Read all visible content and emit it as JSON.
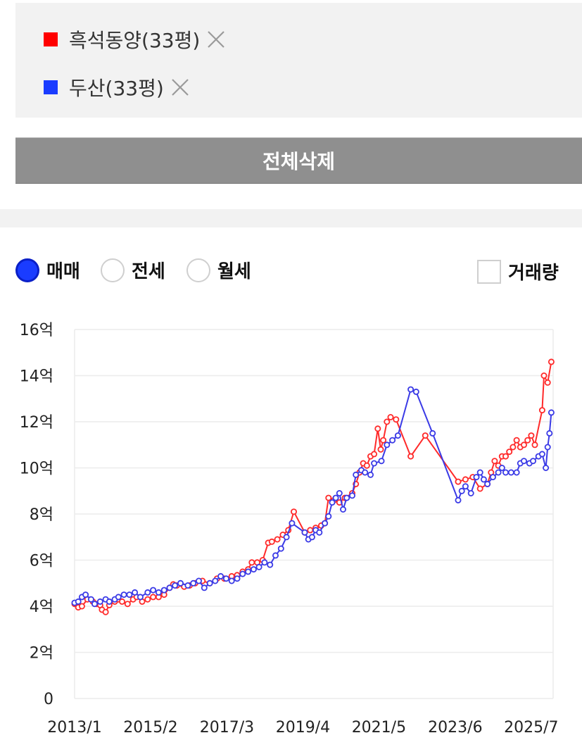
{
  "legend": {
    "items": [
      {
        "label": "흑석동양(33평)",
        "color": "#ff0000"
      },
      {
        "label": "두산(33평)",
        "color": "#1a3cff"
      }
    ]
  },
  "actions": {
    "delete_all_label": "전체삭제"
  },
  "trade_types": {
    "options": [
      {
        "label": "매매",
        "checked": true
      },
      {
        "label": "전세",
        "checked": false
      },
      {
        "label": "월세",
        "checked": false
      }
    ],
    "volume_label": "거래량",
    "volume_checked": false
  },
  "chart_data": {
    "type": "line",
    "y_unit": "억",
    "ylim": [
      0,
      16
    ],
    "y_ticks": [
      0,
      2,
      4,
      6,
      8,
      10,
      12,
      14,
      16
    ],
    "y_tick_labels": [
      "0",
      "2억",
      "4억",
      "6억",
      "8억",
      "10억",
      "12억",
      "14억",
      "16억"
    ],
    "x_ticks": [
      2013.0,
      2015.08,
      2017.17,
      2019.25,
      2021.33,
      2023.42,
      2025.5
    ],
    "x_tick_labels": [
      "2013/1",
      "2015/2",
      "2017/3",
      "2019/4",
      "2021/5",
      "2023/6",
      "2025/7"
    ],
    "xlim": [
      2013.0,
      2026.1
    ],
    "grid": true,
    "series": [
      {
        "name": "흑석동양(33평)",
        "color": "#ff2a2a",
        "points": [
          [
            2013.0,
            4.1
          ],
          [
            2013.1,
            3.95
          ],
          [
            2013.2,
            4.0
          ],
          [
            2013.35,
            4.3
          ],
          [
            2013.5,
            4.2
          ],
          [
            2013.6,
            4.1
          ],
          [
            2013.7,
            4.05
          ],
          [
            2013.75,
            3.85
          ],
          [
            2013.85,
            3.75
          ],
          [
            2013.95,
            4.05
          ],
          [
            2014.1,
            4.2
          ],
          [
            2014.2,
            4.3
          ],
          [
            2014.3,
            4.2
          ],
          [
            2014.45,
            4.1
          ],
          [
            2014.6,
            4.3
          ],
          [
            2014.7,
            4.4
          ],
          [
            2014.85,
            4.2
          ],
          [
            2015.0,
            4.3
          ],
          [
            2015.15,
            4.4
          ],
          [
            2015.3,
            4.4
          ],
          [
            2015.45,
            4.5
          ],
          [
            2015.6,
            4.8
          ],
          [
            2015.7,
            4.95
          ],
          [
            2015.8,
            4.9
          ],
          [
            2016.0,
            4.85
          ],
          [
            2016.15,
            4.9
          ],
          [
            2016.3,
            5.0
          ],
          [
            2016.5,
            5.1
          ],
          [
            2016.7,
            5.0
          ],
          [
            2016.9,
            5.2
          ],
          [
            2017.1,
            5.2
          ],
          [
            2017.3,
            5.3
          ],
          [
            2017.45,
            5.35
          ],
          [
            2017.6,
            5.5
          ],
          [
            2017.75,
            5.6
          ],
          [
            2017.85,
            5.9
          ],
          [
            2018.0,
            5.9
          ],
          [
            2018.15,
            6.0
          ],
          [
            2018.3,
            6.75
          ],
          [
            2018.4,
            6.8
          ],
          [
            2018.55,
            6.9
          ],
          [
            2018.7,
            7.1
          ],
          [
            2018.85,
            7.3
          ],
          [
            2019.0,
            8.1
          ],
          [
            2019.3,
            7.2
          ],
          [
            2019.45,
            7.3
          ],
          [
            2019.6,
            7.4
          ],
          [
            2019.75,
            7.5
          ],
          [
            2019.85,
            7.6
          ],
          [
            2019.95,
            8.7
          ],
          [
            2020.1,
            8.6
          ],
          [
            2020.25,
            8.5
          ],
          [
            2020.4,
            8.7
          ],
          [
            2020.6,
            8.9
          ],
          [
            2020.7,
            9.3
          ],
          [
            2020.8,
            9.8
          ],
          [
            2020.9,
            10.2
          ],
          [
            2021.0,
            10.1
          ],
          [
            2021.1,
            10.5
          ],
          [
            2021.2,
            10.6
          ],
          [
            2021.3,
            11.7
          ],
          [
            2021.38,
            10.8
          ],
          [
            2021.45,
            11.2
          ],
          [
            2021.55,
            12.0
          ],
          [
            2021.65,
            12.2
          ],
          [
            2021.8,
            12.1
          ],
          [
            2022.2,
            10.5
          ],
          [
            2022.6,
            11.4
          ],
          [
            2023.5,
            9.4
          ],
          [
            2023.7,
            9.5
          ],
          [
            2023.9,
            9.6
          ],
          [
            2024.1,
            9.1
          ],
          [
            2024.3,
            9.3
          ],
          [
            2024.4,
            9.8
          ],
          [
            2024.5,
            10.3
          ],
          [
            2024.6,
            10.1
          ],
          [
            2024.7,
            10.5
          ],
          [
            2024.8,
            10.5
          ],
          [
            2024.9,
            10.7
          ],
          [
            2025.0,
            10.9
          ],
          [
            2025.1,
            11.2
          ],
          [
            2025.2,
            10.9
          ],
          [
            2025.3,
            11.0
          ],
          [
            2025.4,
            11.2
          ],
          [
            2025.5,
            11.4
          ],
          [
            2025.6,
            11.0
          ],
          [
            2025.8,
            12.5
          ],
          [
            2025.85,
            14.0
          ],
          [
            2025.95,
            13.7
          ],
          [
            2026.05,
            14.6
          ]
        ]
      },
      {
        "name": "두산(33평)",
        "color": "#3a3ae6",
        "points": [
          [
            2013.0,
            4.15
          ],
          [
            2013.1,
            4.2
          ],
          [
            2013.2,
            4.4
          ],
          [
            2013.3,
            4.5
          ],
          [
            2013.45,
            4.3
          ],
          [
            2013.55,
            4.1
          ],
          [
            2013.7,
            4.2
          ],
          [
            2013.85,
            4.3
          ],
          [
            2013.95,
            4.2
          ],
          [
            2014.1,
            4.3
          ],
          [
            2014.2,
            4.4
          ],
          [
            2014.35,
            4.5
          ],
          [
            2014.5,
            4.5
          ],
          [
            2014.65,
            4.6
          ],
          [
            2014.8,
            4.4
          ],
          [
            2015.0,
            4.6
          ],
          [
            2015.15,
            4.7
          ],
          [
            2015.3,
            4.6
          ],
          [
            2015.45,
            4.7
          ],
          [
            2015.6,
            4.8
          ],
          [
            2015.75,
            4.9
          ],
          [
            2015.9,
            5.0
          ],
          [
            2016.1,
            4.9
          ],
          [
            2016.25,
            5.0
          ],
          [
            2016.4,
            5.1
          ],
          [
            2016.55,
            4.8
          ],
          [
            2016.7,
            5.0
          ],
          [
            2016.85,
            5.1
          ],
          [
            2017.0,
            5.3
          ],
          [
            2017.15,
            5.2
          ],
          [
            2017.3,
            5.1
          ],
          [
            2017.45,
            5.2
          ],
          [
            2017.6,
            5.4
          ],
          [
            2017.75,
            5.5
          ],
          [
            2017.9,
            5.6
          ],
          [
            2018.05,
            5.7
          ],
          [
            2018.2,
            5.9
          ],
          [
            2018.35,
            5.8
          ],
          [
            2018.5,
            6.2
          ],
          [
            2018.65,
            6.5
          ],
          [
            2018.8,
            7.0
          ],
          [
            2018.95,
            7.6
          ],
          [
            2019.3,
            7.2
          ],
          [
            2019.4,
            6.9
          ],
          [
            2019.5,
            7.0
          ],
          [
            2019.6,
            7.3
          ],
          [
            2019.7,
            7.2
          ],
          [
            2019.85,
            7.6
          ],
          [
            2019.95,
            7.9
          ],
          [
            2020.05,
            8.5
          ],
          [
            2020.15,
            8.7
          ],
          [
            2020.25,
            8.9
          ],
          [
            2020.35,
            8.2
          ],
          [
            2020.45,
            8.7
          ],
          [
            2020.6,
            8.8
          ],
          [
            2020.7,
            9.7
          ],
          [
            2020.85,
            9.9
          ],
          [
            2020.95,
            9.8
          ],
          [
            2021.1,
            9.7
          ],
          [
            2021.2,
            10.2
          ],
          [
            2021.4,
            10.3
          ],
          [
            2021.55,
            11.0
          ],
          [
            2021.7,
            11.2
          ],
          [
            2021.85,
            11.4
          ],
          [
            2022.2,
            13.4
          ],
          [
            2022.35,
            13.3
          ],
          [
            2022.8,
            11.5
          ],
          [
            2023.5,
            8.6
          ],
          [
            2023.6,
            9.0
          ],
          [
            2023.7,
            9.2
          ],
          [
            2023.85,
            8.9
          ],
          [
            2024.0,
            9.6
          ],
          [
            2024.1,
            9.8
          ],
          [
            2024.2,
            9.5
          ],
          [
            2024.3,
            9.3
          ],
          [
            2024.45,
            9.6
          ],
          [
            2024.6,
            9.8
          ],
          [
            2024.7,
            10.0
          ],
          [
            2024.8,
            9.8
          ],
          [
            2024.95,
            9.8
          ],
          [
            2025.1,
            9.8
          ],
          [
            2025.2,
            10.2
          ],
          [
            2025.3,
            10.3
          ],
          [
            2025.45,
            10.2
          ],
          [
            2025.55,
            10.3
          ],
          [
            2025.7,
            10.5
          ],
          [
            2025.8,
            10.6
          ],
          [
            2025.9,
            10.0
          ],
          [
            2025.95,
            10.9
          ],
          [
            2026.0,
            11.5
          ],
          [
            2026.05,
            12.4
          ]
        ]
      }
    ]
  }
}
